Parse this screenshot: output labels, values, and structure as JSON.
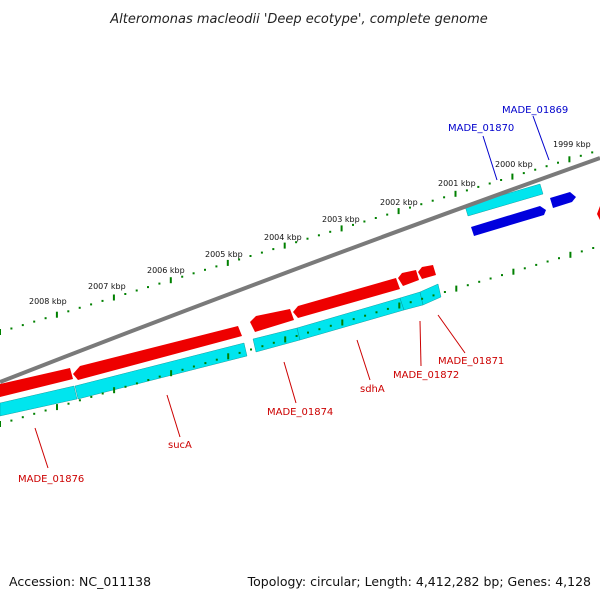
{
  "title": "Alteromonas macleodii 'Deep ecotype', complete genome",
  "accession": "Accession: NC_011138",
  "summary": "Topology: circular; Length: 4,412,282 bp; Genes: 4,128",
  "colors": {
    "forward_cds": "#0000dd",
    "reverse_cds": "#ee0000",
    "gene_track": "#00e5ee",
    "backbone": "#808080",
    "ticks": "#008000",
    "forward_label": "#0000cc",
    "reverse_label": "#cc0000"
  },
  "kbp_labels": [
    "1999 kbp",
    "2000 kbp",
    "2001 kbp",
    "2002 kbp",
    "2003 kbp",
    "2004 kbp",
    "2005 kbp",
    "2006 kbp",
    "2007 kbp",
    "2008 kbp"
  ],
  "gene_labels": [
    {
      "text": "MADE_01869",
      "strand": "forward"
    },
    {
      "text": "MADE_01870",
      "strand": "forward"
    },
    {
      "text": "MADE_01871",
      "strand": "reverse"
    },
    {
      "text": "MADE_01872",
      "strand": "reverse"
    },
    {
      "text": "sdhA",
      "strand": "reverse"
    },
    {
      "text": "MADE_01874",
      "strand": "reverse"
    },
    {
      "text": "sucA",
      "strand": "reverse"
    },
    {
      "text": "MADE_01876",
      "strand": "reverse"
    }
  ]
}
